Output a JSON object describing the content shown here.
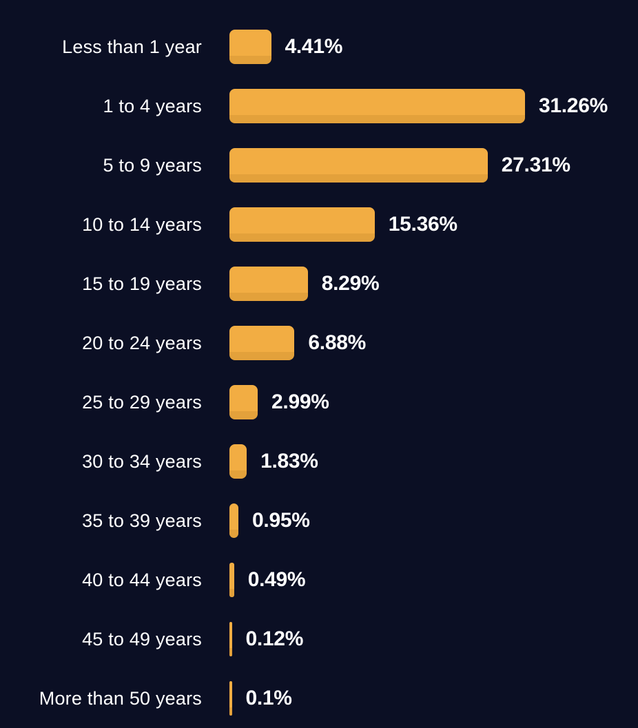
{
  "chart_data": {
    "type": "bar",
    "orientation": "horizontal",
    "title": "",
    "xlabel": "",
    "ylabel": "",
    "grid": false,
    "legend": false,
    "xlim": [
      0,
      33
    ],
    "categories": [
      "Less than 1 year",
      "1 to 4 years",
      "5 to 9 years",
      "10 to 14 years",
      "15 to 19 years",
      "20 to 24 years",
      "25 to 29 years",
      "30 to 34 years",
      "35 to 39 years",
      "40 to 44 years",
      "45 to 49 years",
      "More than 50 years"
    ],
    "values": [
      4.41,
      31.26,
      27.31,
      15.36,
      8.29,
      6.88,
      2.99,
      1.83,
      0.95,
      0.49,
      0.12,
      0.1
    ],
    "value_labels": [
      "4.41%",
      "31.26%",
      "27.31%",
      "15.36%",
      "8.29%",
      "6.88%",
      "2.99%",
      "1.83%",
      "0.95%",
      "0.49%",
      "0.12%",
      "0.1%"
    ],
    "colors": {
      "background": "#0b0f24",
      "bar": "#f2ad43",
      "bar_shade": "#e3a13b",
      "category_text": "#ffffff",
      "value_text": "#ffffff"
    }
  }
}
